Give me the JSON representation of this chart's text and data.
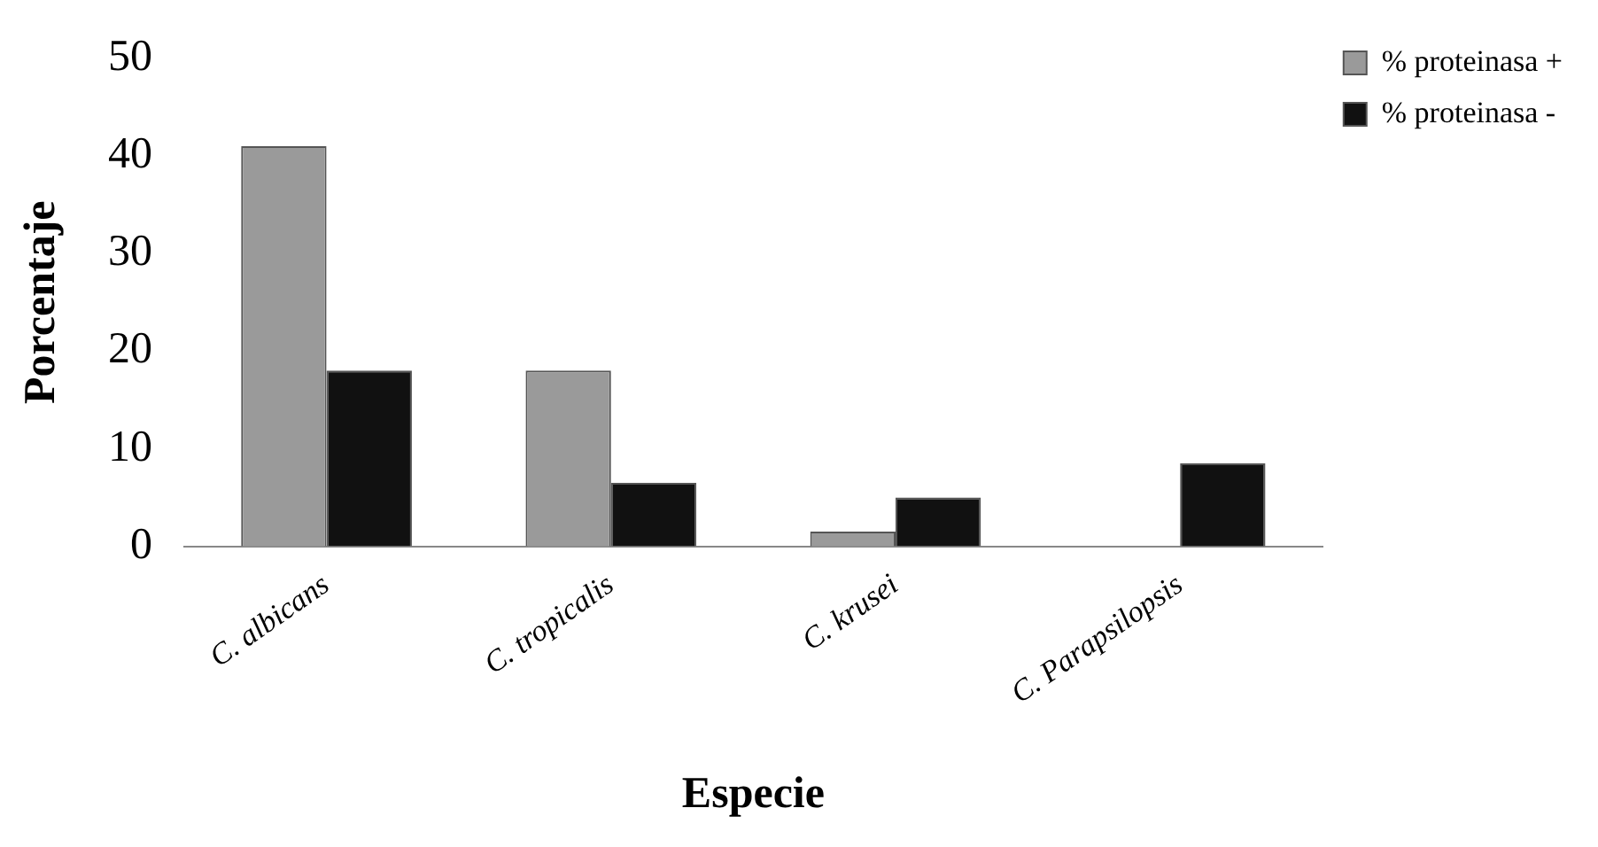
{
  "chart_data": {
    "type": "bar",
    "xlabel": "Especie",
    "ylabel": "Porcentaje",
    "categories": [
      "C. albicans",
      "C. tropicalis",
      "C. krusei",
      "C. Parapsilopsis"
    ],
    "series": [
      {
        "name": "% proteinasa +",
        "color": "#9a9a9a",
        "values": [
          41,
          18,
          1.5,
          0
        ]
      },
      {
        "name": "% proteinasa -",
        "color": "#111111",
        "values": [
          18,
          6.5,
          5,
          8.5
        ]
      }
    ],
    "ylim": [
      0,
      50
    ],
    "yticks": [
      0,
      10,
      20,
      30,
      40,
      50
    ],
    "grid": false,
    "legend": "top right"
  }
}
